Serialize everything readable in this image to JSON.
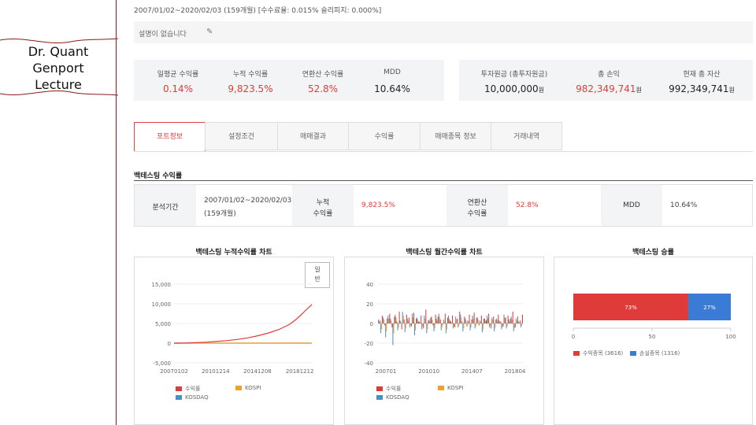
{
  "sidebar": {
    "logo_text": "Dr. Quant\nGenport\nLecture"
  },
  "header": {
    "period": "2007/01/02~2020/02/03 (159개월) [수수료율: 0.015% 슬리피지: 0.000%]",
    "description": "설명이 없습니다"
  },
  "summary_left": [
    {
      "label": "일평균 수익률",
      "value": "0.14%"
    },
    {
      "label": "누적 수익률",
      "value": "9,823.5%"
    },
    {
      "label": "연환산 수익률",
      "value": "52.8%"
    },
    {
      "label": "MDD",
      "value": "10.64%"
    }
  ],
  "summary_right": [
    {
      "label": "투자원금 (총투자원금)",
      "value": "10,000,000",
      "unit": "원"
    },
    {
      "label": "총 손익",
      "value": "982,349,741",
      "unit": "원"
    },
    {
      "label": "현재 총 자산",
      "value": "992,349,741",
      "unit": "원"
    }
  ],
  "tabs": [
    "포트정보",
    "설정조건",
    "매매결과",
    "수익률",
    "매매종목 정보",
    "거래내역"
  ],
  "backtest_section": {
    "title": "백테스팅 수익률",
    "period_label": "분석기간",
    "period_value_line1": "2007/01/02~2020/02/03",
    "period_value_line2": "(159개월)",
    "cum_label_1": "누적",
    "cum_label_2": "수익률",
    "cum_value": "9,823.5%",
    "ann_label_1": "연환산",
    "ann_label_2": "수익률",
    "ann_value": "52.8%",
    "mdd_label": "MDD",
    "mdd_value": "10.64%"
  },
  "charts": {
    "cumulative_title": "백테스팅 누적수익률 차트",
    "monthly_title": "백테스팅 월간수익률 차트",
    "winrate_title": "백테스팅 승률",
    "toggle_label": "일\n반",
    "legend_return": "수익률",
    "legend_kospi": "KOSPI",
    "legend_kosdaq": "KOSDAQ",
    "legend_win": "수익종목 (3616)",
    "legend_loss": "손실종목 (1316)"
  },
  "colors": {
    "accent": "#e03b3b",
    "kospi": "#f0a030",
    "kosdaq": "#4a90c8",
    "loss": "#3a7bd5"
  },
  "chart_data": [
    {
      "type": "line",
      "title": "백테스팅 누적수익률 차트",
      "x_ticks": [
        "20070102",
        "20101214",
        "20141208",
        "20181212"
      ],
      "y_ticks": [
        "15,000",
        "10,000",
        "5,000",
        "0",
        "-5,000"
      ],
      "ylim": [
        -5000,
        15000
      ],
      "series": [
        {
          "name": "수익률",
          "x": [
            2007.0,
            2008.0,
            2009.0,
            2010.0,
            2011.0,
            2012.0,
            2013.0,
            2014.0,
            2015.0,
            2016.0,
            2017.0,
            2018.0,
            2018.5,
            2019.0,
            2019.5,
            2020.1
          ],
          "values": [
            0,
            40,
            120,
            250,
            420,
            650,
            950,
            1350,
            1900,
            2600,
            3500,
            4800,
            5800,
            7000,
            8300,
            9823
          ]
        },
        {
          "name": "KOSPI",
          "x": [
            2007.0,
            2020.1
          ],
          "values": [
            0,
            40
          ]
        },
        {
          "name": "KOSDAQ",
          "x": [
            2007.0,
            2020.1
          ],
          "values": [
            0,
            -10
          ]
        }
      ]
    },
    {
      "type": "bar",
      "title": "백테스팅 월간수익률 차트",
      "x_ticks": [
        "200701",
        "201010",
        "201407",
        "201804"
      ],
      "y_ticks": [
        "40",
        "20",
        "0",
        "-20",
        "-40"
      ],
      "ylim": [
        -40,
        40
      ],
      "series": [
        {
          "name": "수익률",
          "values": [
            3,
            8,
            -2,
            5,
            10,
            -4,
            7,
            2,
            12,
            -6,
            4,
            9,
            6,
            -3,
            11,
            5,
            2,
            8,
            -5,
            14,
            3,
            6,
            -2,
            9,
            7,
            4,
            -1,
            10,
            6,
            3,
            8,
            -4,
            5,
            12,
            2,
            7,
            -3,
            9,
            4,
            11,
            6,
            -2,
            8,
            5,
            3,
            10,
            -5,
            7,
            4,
            9,
            2,
            -3,
            6,
            8,
            5,
            12,
            -4,
            7,
            3,
            9
          ]
        },
        {
          "name": "KOSPI",
          "values": [
            2,
            -6,
            4,
            -8,
            5,
            3,
            -10,
            6,
            -4,
            2,
            8,
            -5,
            3,
            -2,
            6,
            -7,
            4,
            1,
            -3,
            5,
            -6,
            2,
            4,
            -5,
            3,
            7,
            -4,
            2,
            -6,
            5,
            1,
            -3,
            4,
            -2,
            6,
            -5,
            3,
            2,
            -4,
            5,
            -3,
            4,
            2,
            -6,
            3,
            5,
            -2,
            4,
            -5,
            3,
            2,
            -4,
            6,
            -3,
            2,
            4,
            -5,
            3,
            1,
            -2
          ]
        },
        {
          "name": "KOSDAQ",
          "values": [
            4,
            -10,
            6,
            -14,
            8,
            5,
            -22,
            9,
            -7,
            3,
            12,
            -9,
            5,
            -4,
            10,
            -12,
            6,
            2,
            -6,
            8,
            -10,
            4,
            7,
            -8,
            5,
            10,
            -7,
            4,
            -10,
            8,
            2,
            -5,
            7,
            -4,
            9,
            -8,
            5,
            3,
            -7,
            8,
            -5,
            6,
            3,
            -9,
            5,
            8,
            -4,
            6,
            -8,
            5,
            3,
            -6,
            9,
            -5,
            4,
            7,
            -8,
            5,
            2,
            -4
          ]
        }
      ]
    },
    {
      "type": "bar",
      "title": "백테스팅 승률",
      "orientation": "horizontal-stacked",
      "x_ticks": [
        "0",
        "50",
        "100"
      ],
      "xlim": [
        0,
        100
      ],
      "series": [
        {
          "name": "수익종목 (3616)",
          "values": [
            73
          ],
          "label": "73%"
        },
        {
          "name": "손실종목 (1316)",
          "values": [
            27
          ],
          "label": "27%"
        }
      ]
    }
  ]
}
